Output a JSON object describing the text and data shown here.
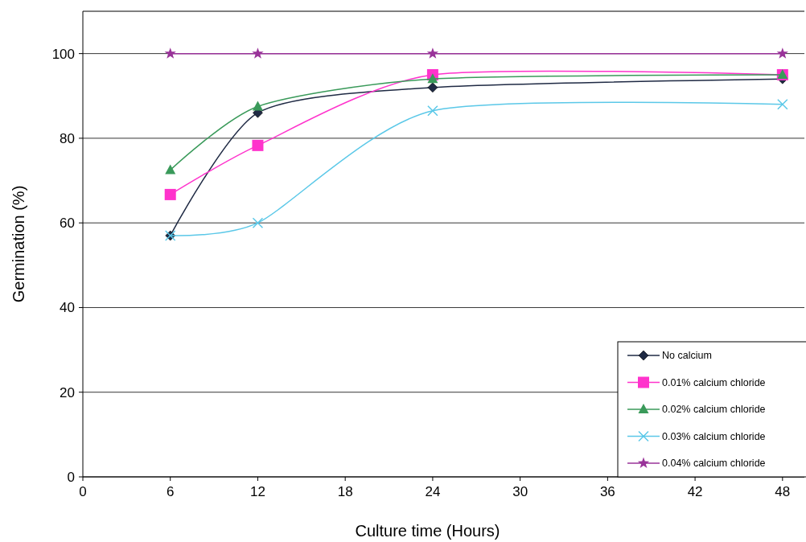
{
  "chart_data": {
    "type": "line",
    "xlabel": "Culture time (Hours)",
    "ylabel": "Germination (%)",
    "x": [
      6,
      12,
      24,
      48
    ],
    "xlim": [
      0,
      49.5
    ],
    "xticks": [
      0,
      6,
      12,
      18,
      24,
      30,
      36,
      42,
      48
    ],
    "ylim": [
      0,
      110
    ],
    "yticks": [
      0,
      20,
      40,
      60,
      80,
      100
    ],
    "grid": "y",
    "legend": "bottom right",
    "series": [
      {
        "name": "No calcium",
        "color": "#1f2a44",
        "marker": "diamond",
        "values": [
          57,
          86,
          92,
          94
        ]
      },
      {
        "name": "0.01% calcium chloride",
        "color": "#ff33cc",
        "marker": "square",
        "values": [
          66.7,
          78.3,
          95,
          95
        ]
      },
      {
        "name": "0.02% calcium chloride",
        "color": "#3a9a5a",
        "marker": "triangle",
        "values": [
          72.5,
          87.5,
          94,
          95
        ]
      },
      {
        "name": "0.03% calcium chloride",
        "color": "#5bc8e8",
        "marker": "cross",
        "values": [
          57,
          60,
          86.5,
          88
        ]
      },
      {
        "name": "0.04% calcium chloride",
        "color": "#993399",
        "marker": "star",
        "values": [
          100,
          100,
          100,
          100
        ]
      }
    ]
  }
}
